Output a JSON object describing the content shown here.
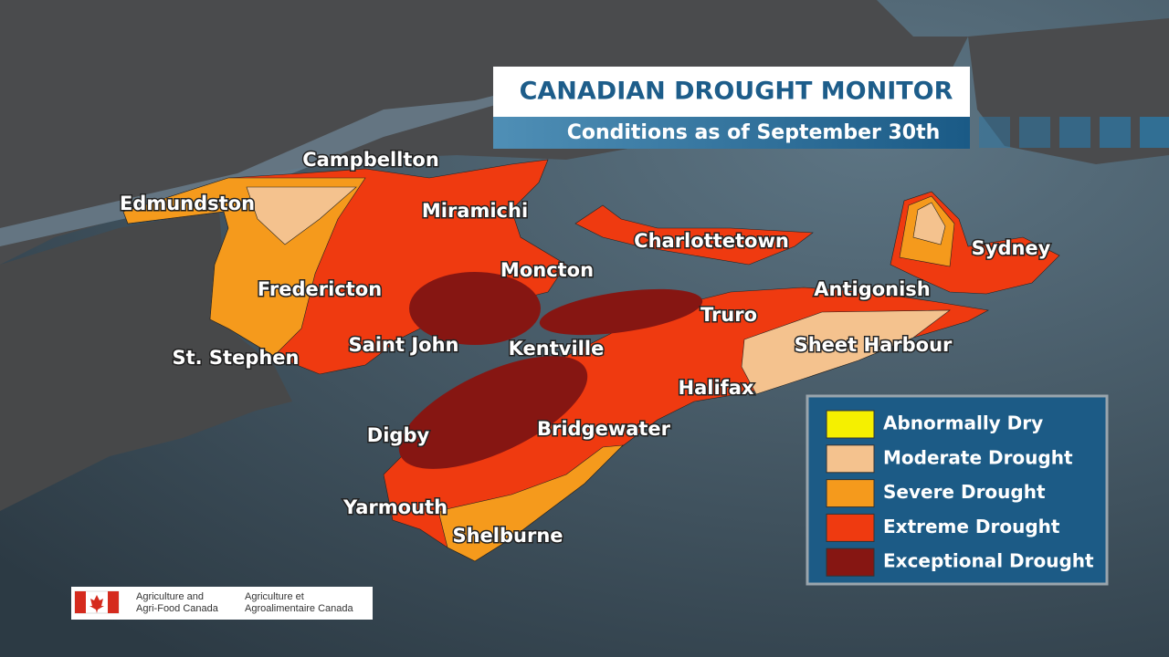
{
  "header": {
    "title": "CANADIAN DROUGHT MONITOR",
    "subtitle": "Conditions as of September 30th"
  },
  "cities": [
    "Campbellton",
    "Edmundston",
    "Miramichi",
    "Charlottetown",
    "Sydney",
    "Moncton",
    "Fredericton",
    "Antigonish",
    "Truro",
    "Saint John",
    "Kentville",
    "Sheet Harbour",
    "St. Stephen",
    "Halifax",
    "Digby",
    "Bridgewater",
    "Yarmouth",
    "Shelburne"
  ],
  "legend": [
    {
      "label": "Abnormally Dry",
      "color": "#f5f000"
    },
    {
      "label": "Moderate Drought",
      "color": "#f4c28e"
    },
    {
      "label": "Severe Drought",
      "color": "#f59a1c"
    },
    {
      "label": "Extreme Drought",
      "color": "#ef3a10"
    },
    {
      "label": "Exceptional Drought",
      "color": "#861612"
    }
  ],
  "logo": {
    "english": [
      "Agriculture and",
      "Agri-Food Canada"
    ],
    "french": [
      "Agriculture et",
      "Agroalimentaire Canada"
    ]
  }
}
